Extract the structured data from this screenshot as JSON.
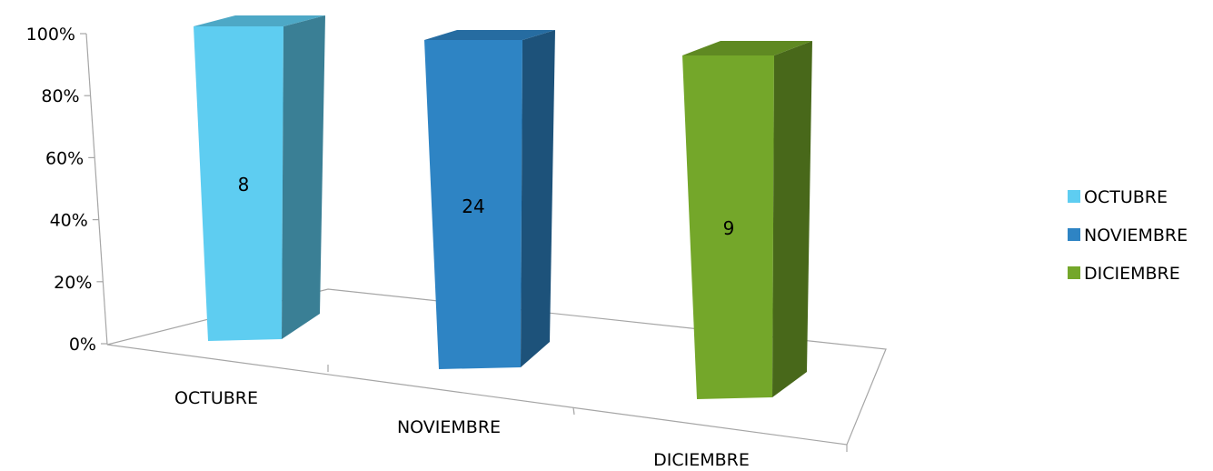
{
  "chart_data": {
    "type": "bar",
    "stacked_percent": true,
    "three_d": true,
    "categories": [
      "OCTUBRE",
      "NOVIEMBRE",
      "DICIEMBRE"
    ],
    "series": [
      {
        "name": "OCTUBRE",
        "values": [
          8,
          null,
          null
        ],
        "color": "#5ECDF1"
      },
      {
        "name": "NOVIEMBRE",
        "values": [
          null,
          24,
          null
        ],
        "color": "#2E84C4"
      },
      {
        "name": "DICIEMBRE",
        "values": [
          null,
          null,
          9
        ],
        "color": "#74A72A"
      }
    ],
    "data_labels": [
      "8",
      "24",
      "9"
    ],
    "y_ticks": [
      "0%",
      "20%",
      "40%",
      "60%",
      "80%",
      "100%"
    ],
    "ylim": [
      0,
      100
    ],
    "legend": "right",
    "grid": false
  }
}
